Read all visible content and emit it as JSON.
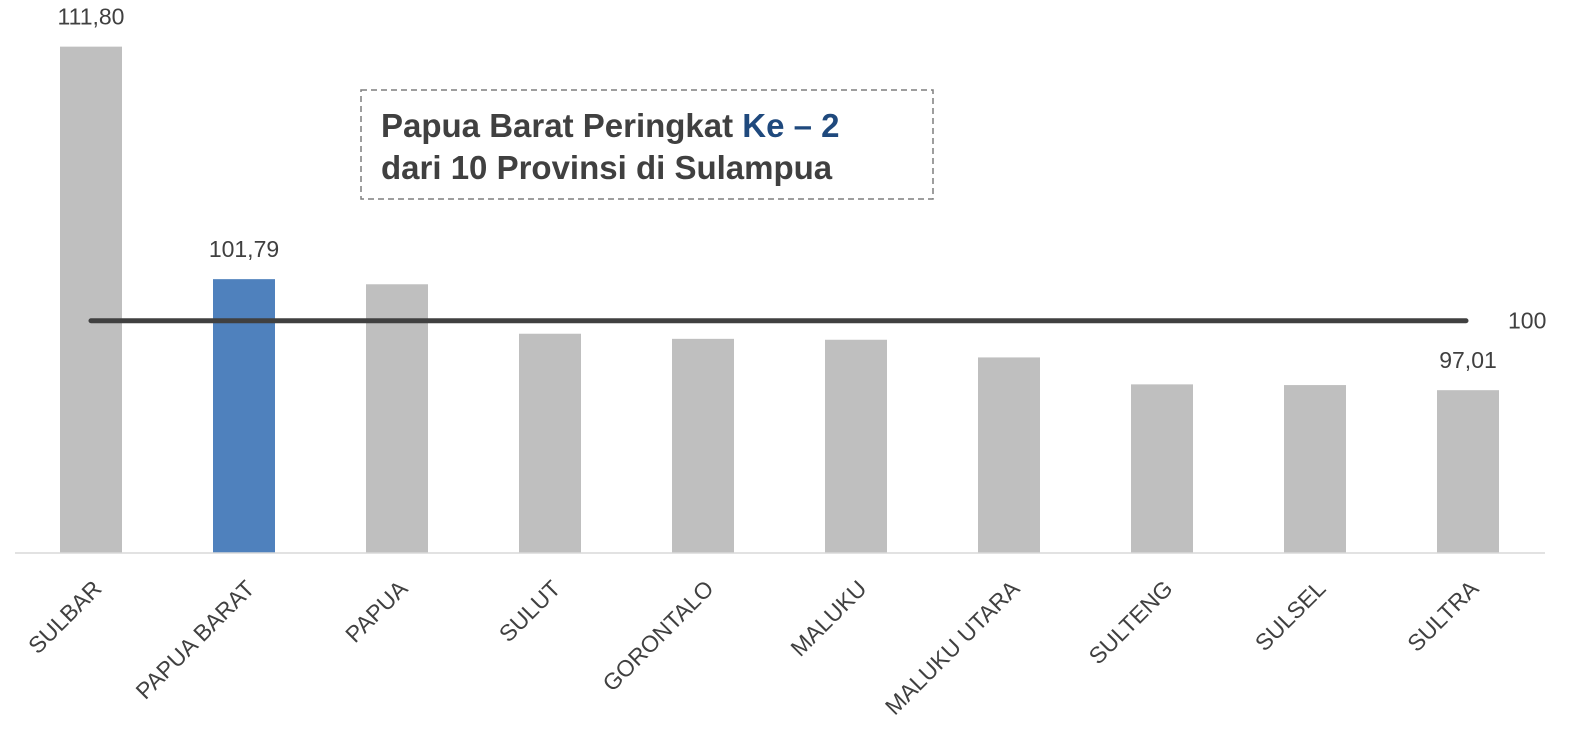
{
  "chart_data": {
    "type": "bar",
    "categories": [
      "SULBAR",
      "PAPUA BARAT",
      "PAPUA",
      "SULUT",
      "GORONTALO",
      "MALUKU",
      "MALUKU UTARA",
      "SULTENG",
      "SULSEL",
      "SULTRA"
    ],
    "values": [
      111.8,
      101.79,
      101.57,
      99.44,
      99.22,
      99.18,
      98.42,
      97.26,
      97.23,
      97.01
    ],
    "value_labels": [
      "111,80",
      "101,79",
      null,
      null,
      null,
      null,
      null,
      null,
      null,
      "97,01"
    ],
    "colors": [
      "#bfbfbf",
      "#4f81bd",
      "#bfbfbf",
      "#bfbfbf",
      "#bfbfbf",
      "#bfbfbf",
      "#bfbfbf",
      "#bfbfbf",
      "#bfbfbf",
      "#bfbfbf"
    ],
    "ylim": [
      90,
      112
    ],
    "reference_line": {
      "value": 100,
      "label": "100",
      "color": "#404040"
    },
    "annotation": {
      "line1": "Papua Barat Peringkat ",
      "highlight": "Ke – 2",
      "highlight_color": "#1f497d",
      "line2": "dari 10 Provinsi di Sulampua"
    }
  }
}
